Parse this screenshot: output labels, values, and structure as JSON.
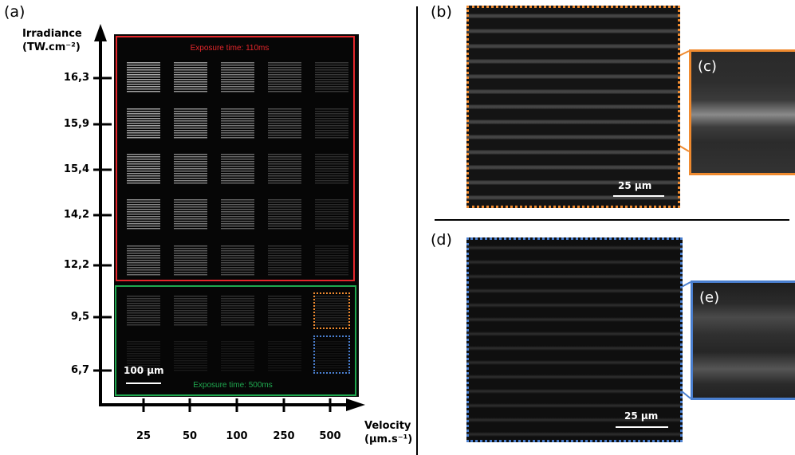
{
  "panels": {
    "a": "(a)",
    "b": "(b)",
    "c": "(c)",
    "d": "(d)",
    "e": "(e)"
  },
  "y_axis": {
    "label_line1": "Irradiance",
    "label_line2": "(TW.cm⁻²)",
    "ticks": [
      "16,3",
      "15,9",
      "15,4",
      "14,2",
      "12,2",
      "9,5",
      "6,7"
    ]
  },
  "x_axis": {
    "label_line1": "Velocity",
    "label_line2": "(µm.s⁻¹)",
    "ticks": [
      "25",
      "50",
      "100",
      "250",
      "500"
    ]
  },
  "exposure": {
    "red": "Exposure time: 110ms",
    "green": "Exposure time: 500ms"
  },
  "scalebars": {
    "a": "100 µm",
    "b": "25 µm",
    "d": "25 µm"
  },
  "colors": {
    "red_frame": "#e5262b",
    "green_frame": "#1fa84f",
    "orange": "#ef8a2f",
    "blue": "#4a7fcf"
  }
}
